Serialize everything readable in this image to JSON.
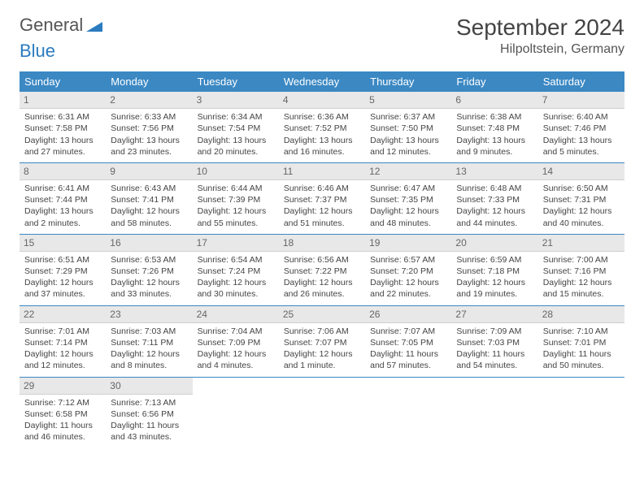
{
  "logo": {
    "word1": "General",
    "word2": "Blue"
  },
  "title": "September 2024",
  "location": "Hilpoltstein, Germany",
  "colors": {
    "header_bg": "#3b88c3",
    "header_text": "#ffffff",
    "daynum_bg": "#e8e8e8",
    "border": "#3b88c3",
    "logo_blue": "#2b7bbf"
  },
  "layout": {
    "columns": 7,
    "fontsize_title": 28,
    "fontsize_location": 16,
    "fontsize_dayheader": 13,
    "fontsize_cell": 10.5
  },
  "dayNames": [
    "Sunday",
    "Monday",
    "Tuesday",
    "Wednesday",
    "Thursday",
    "Friday",
    "Saturday"
  ],
  "labels": {
    "sunrise": "Sunrise:",
    "sunset": "Sunset:",
    "daylight": "Daylight:"
  },
  "days": [
    {
      "n": 1,
      "sunrise": "6:31 AM",
      "sunset": "7:58 PM",
      "daylight": "13 hours and 27 minutes."
    },
    {
      "n": 2,
      "sunrise": "6:33 AM",
      "sunset": "7:56 PM",
      "daylight": "13 hours and 23 minutes."
    },
    {
      "n": 3,
      "sunrise": "6:34 AM",
      "sunset": "7:54 PM",
      "daylight": "13 hours and 20 minutes."
    },
    {
      "n": 4,
      "sunrise": "6:36 AM",
      "sunset": "7:52 PM",
      "daylight": "13 hours and 16 minutes."
    },
    {
      "n": 5,
      "sunrise": "6:37 AM",
      "sunset": "7:50 PM",
      "daylight": "13 hours and 12 minutes."
    },
    {
      "n": 6,
      "sunrise": "6:38 AM",
      "sunset": "7:48 PM",
      "daylight": "13 hours and 9 minutes."
    },
    {
      "n": 7,
      "sunrise": "6:40 AM",
      "sunset": "7:46 PM",
      "daylight": "13 hours and 5 minutes."
    },
    {
      "n": 8,
      "sunrise": "6:41 AM",
      "sunset": "7:44 PM",
      "daylight": "13 hours and 2 minutes."
    },
    {
      "n": 9,
      "sunrise": "6:43 AM",
      "sunset": "7:41 PM",
      "daylight": "12 hours and 58 minutes."
    },
    {
      "n": 10,
      "sunrise": "6:44 AM",
      "sunset": "7:39 PM",
      "daylight": "12 hours and 55 minutes."
    },
    {
      "n": 11,
      "sunrise": "6:46 AM",
      "sunset": "7:37 PM",
      "daylight": "12 hours and 51 minutes."
    },
    {
      "n": 12,
      "sunrise": "6:47 AM",
      "sunset": "7:35 PM",
      "daylight": "12 hours and 48 minutes."
    },
    {
      "n": 13,
      "sunrise": "6:48 AM",
      "sunset": "7:33 PM",
      "daylight": "12 hours and 44 minutes."
    },
    {
      "n": 14,
      "sunrise": "6:50 AM",
      "sunset": "7:31 PM",
      "daylight": "12 hours and 40 minutes."
    },
    {
      "n": 15,
      "sunrise": "6:51 AM",
      "sunset": "7:29 PM",
      "daylight": "12 hours and 37 minutes."
    },
    {
      "n": 16,
      "sunrise": "6:53 AM",
      "sunset": "7:26 PM",
      "daylight": "12 hours and 33 minutes."
    },
    {
      "n": 17,
      "sunrise": "6:54 AM",
      "sunset": "7:24 PM",
      "daylight": "12 hours and 30 minutes."
    },
    {
      "n": 18,
      "sunrise": "6:56 AM",
      "sunset": "7:22 PM",
      "daylight": "12 hours and 26 minutes."
    },
    {
      "n": 19,
      "sunrise": "6:57 AM",
      "sunset": "7:20 PM",
      "daylight": "12 hours and 22 minutes."
    },
    {
      "n": 20,
      "sunrise": "6:59 AM",
      "sunset": "7:18 PM",
      "daylight": "12 hours and 19 minutes."
    },
    {
      "n": 21,
      "sunrise": "7:00 AM",
      "sunset": "7:16 PM",
      "daylight": "12 hours and 15 minutes."
    },
    {
      "n": 22,
      "sunrise": "7:01 AM",
      "sunset": "7:14 PM",
      "daylight": "12 hours and 12 minutes."
    },
    {
      "n": 23,
      "sunrise": "7:03 AM",
      "sunset": "7:11 PM",
      "daylight": "12 hours and 8 minutes."
    },
    {
      "n": 24,
      "sunrise": "7:04 AM",
      "sunset": "7:09 PM",
      "daylight": "12 hours and 4 minutes."
    },
    {
      "n": 25,
      "sunrise": "7:06 AM",
      "sunset": "7:07 PM",
      "daylight": "12 hours and 1 minute."
    },
    {
      "n": 26,
      "sunrise": "7:07 AM",
      "sunset": "7:05 PM",
      "daylight": "11 hours and 57 minutes."
    },
    {
      "n": 27,
      "sunrise": "7:09 AM",
      "sunset": "7:03 PM",
      "daylight": "11 hours and 54 minutes."
    },
    {
      "n": 28,
      "sunrise": "7:10 AM",
      "sunset": "7:01 PM",
      "daylight": "11 hours and 50 minutes."
    },
    {
      "n": 29,
      "sunrise": "7:12 AM",
      "sunset": "6:58 PM",
      "daylight": "11 hours and 46 minutes."
    },
    {
      "n": 30,
      "sunrise": "7:13 AM",
      "sunset": "6:56 PM",
      "daylight": "11 hours and 43 minutes."
    }
  ],
  "startOffset": 0,
  "totalCells": 35
}
